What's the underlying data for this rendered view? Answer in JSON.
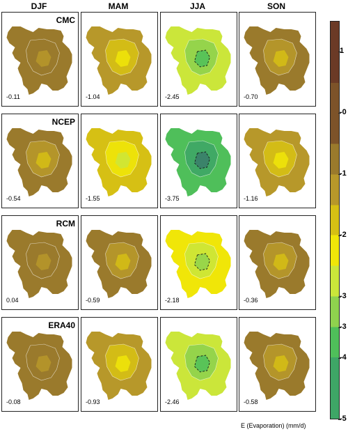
{
  "seasons": [
    "DJF",
    "MAM",
    "JJA",
    "SON"
  ],
  "row_labels": [
    "CMC",
    "NCEP",
    "RCM",
    "ERA40"
  ],
  "colors": {
    "dark_brown": "#6b3a26",
    "brown": "#7d5329",
    "tan": "#9a7a2c",
    "olive": "#b7982a",
    "yellow_olive": "#d6c014",
    "yellow": "#f0e608",
    "yellow_green": "#cbe63a",
    "light_green": "#8fd24e",
    "green": "#4fbf5a",
    "mid_green": "#3ea666",
    "teal": "#3b7c6b"
  },
  "chart_data": {
    "type": "heatmap",
    "title": "",
    "xlabel": "",
    "ylabel": "",
    "unit_label": "E (Evaporation) (mm/d)",
    "columns": [
      "DJF",
      "MAM",
      "JJA",
      "SON"
    ],
    "rows": [
      "CMC",
      "NCEP",
      "RCM",
      "ERA40"
    ],
    "values": [
      [
        -0.11,
        -1.04,
        -2.45,
        -0.7
      ],
      [
        -0.54,
        -1.55,
        -3.75,
        -1.16
      ],
      [
        0.04,
        -0.59,
        -2.18,
        -0.36
      ],
      [
        -0.08,
        -0.93,
        -2.46,
        -0.58
      ]
    ],
    "value_labels": [
      [
        "-0.11",
        "-1.04",
        "-2.45",
        "-0.70"
      ],
      [
        "-0.54",
        "-1.55",
        "-3.75",
        "-1.16"
      ],
      [
        "0.04",
        "-0.59",
        "-2.18",
        "-0.36"
      ],
      [
        "-0.08",
        "-0.93",
        "-2.46",
        "-0.58"
      ]
    ],
    "colorbar": {
      "range": [
        -5,
        1.5
      ],
      "tick_labels": [
        "1",
        "-0",
        "-1",
        "-2",
        "-3",
        "-3",
        "-4",
        "-5"
      ],
      "tick_values": [
        1,
        0,
        -1,
        -2,
        -3,
        -3.5,
        -4,
        -5
      ]
    }
  }
}
